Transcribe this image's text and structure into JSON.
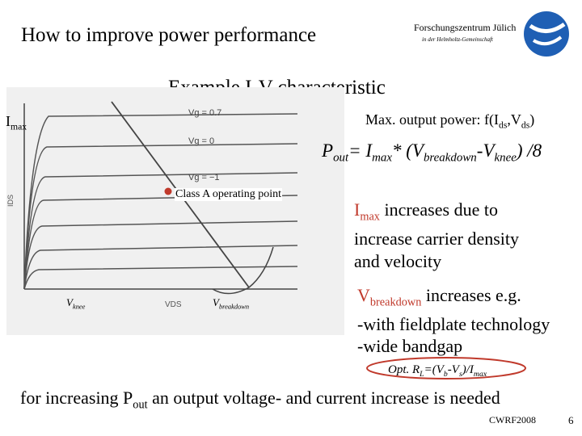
{
  "header": {
    "title": "How to improve power performance",
    "org_name": "Forschungszentrum Jülich",
    "org_sub": "in der Helmholtz-Gemeinschaft"
  },
  "slide": {
    "subtitle": "Example I-V characteristic",
    "imax_label": "I",
    "imax_label_sub": "max",
    "max_power": {
      "text": "Max. output power: f(I",
      "sub1": "ds",
      "mid": ",V",
      "sub2": "ds",
      "end": ")"
    },
    "pout_formula": {
      "p": "P",
      "p_sub": "out",
      "eq": "= I",
      "imax_sub": "max",
      "mid": "* (V",
      "bd_sub": "breakdown",
      "minus": "-V",
      "knee_sub": "knee",
      "end": ") /8"
    },
    "classa_label": "Class A operating point",
    "plot_labels": {
      "vg_top": "Vg = 0.7",
      "vg_zero": "Vg = 0",
      "vg_neg": "Vg = −1",
      "ids": "IDS",
      "vds": "VDS",
      "vknee": "V",
      "vknee_sub": "knee",
      "vbd": "V",
      "vbd_sub": "breakdown"
    },
    "imax_increase": {
      "i": "I",
      "i_sub": "max",
      "line1_rest": " increases due to",
      "line2": "increase carrier density",
      "line3": "and velocity"
    },
    "vbd_increase": {
      "v": "V",
      "v_sub": "breakdown",
      "line1_rest": " increases e.g.",
      "line2": "-with fieldplate technology",
      "line3": "-wide bandgap"
    },
    "ropt": {
      "pre": "Opt. R",
      "l_sub": "L",
      "mid": "=(V",
      "b_sub": "b",
      "dash": "-V",
      "s_sub": "s",
      "end": ")/I",
      "max_sub": "max"
    },
    "footer": {
      "pre": "for increasing P",
      "sub": "out",
      "rest": " an output voltage- and current increase is needed"
    },
    "conference": "CWRF2008",
    "page_number": "6"
  },
  "colors": {
    "accent_red": "#c0392b",
    "logo_blue": "#1f5fb4",
    "marker_red": "#c0392b"
  }
}
